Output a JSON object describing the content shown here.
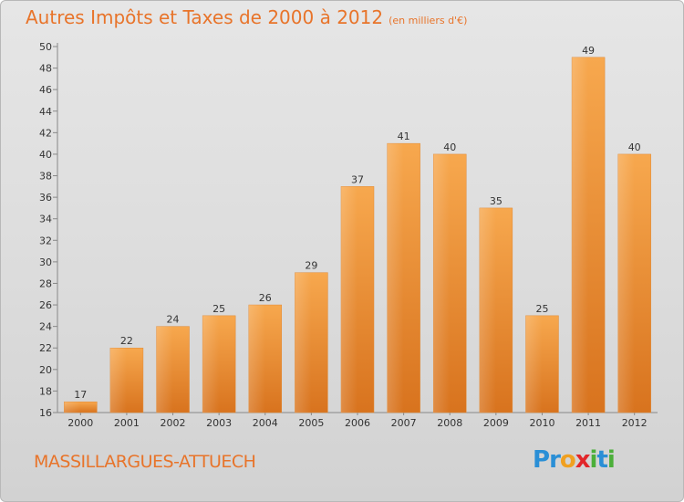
{
  "header": {
    "title": "Autres Impôts et Taxes de 2000 à 2012",
    "unit_note": "(en milliers d'€)"
  },
  "footer": {
    "commune": "MASSILLARGUES-ATTUECH",
    "logo": {
      "letters": [
        "P",
        "r",
        "o",
        "x",
        "i",
        "t",
        "i"
      ],
      "colors": [
        "#2a8fd6",
        "#2a8fd6",
        "#f0a020",
        "#e2262a",
        "#4caf3a",
        "#2a8fd6",
        "#4caf3a"
      ]
    }
  },
  "chart_data": {
    "type": "bar",
    "title": "Autres Impôts et Taxes de 2000 à 2012",
    "xlabel": "",
    "ylabel": "",
    "categories": [
      "2000",
      "2001",
      "2002",
      "2003",
      "2004",
      "2005",
      "2006",
      "2007",
      "2008",
      "2009",
      "2010",
      "2011",
      "2012"
    ],
    "values": [
      17,
      22,
      24,
      25,
      26,
      29,
      37,
      41,
      40,
      35,
      25,
      49,
      40
    ],
    "ylim": [
      16,
      50
    ],
    "yticks": [
      16,
      18,
      20,
      22,
      24,
      26,
      28,
      30,
      32,
      34,
      36,
      38,
      40,
      42,
      44,
      46,
      48,
      50
    ],
    "grid": false,
    "bar_color": "#f0a04a"
  }
}
